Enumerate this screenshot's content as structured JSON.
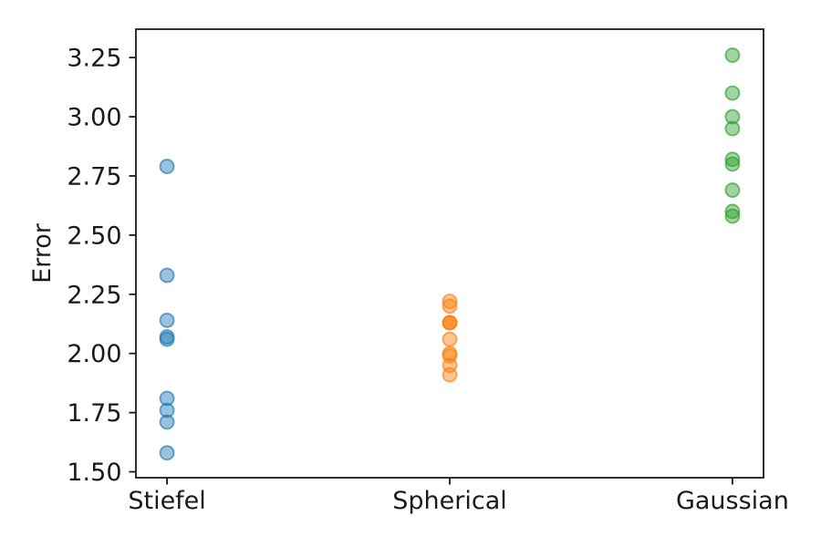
{
  "figure": {
    "background": "#ffffff",
    "ink_color": "#1a1a1a"
  },
  "chart_data": {
    "type": "scatter",
    "title": "",
    "xlabel": "",
    "ylabel": "Error",
    "categories": [
      "Stiefel",
      "Spherical",
      "Gaussian"
    ],
    "yticks": [
      "1.50",
      "1.75",
      "2.00",
      "2.25",
      "2.50",
      "2.75",
      "3.00",
      "3.25"
    ],
    "ylim": [
      1.475,
      3.37
    ],
    "xlim": [
      -0.11,
      2.11
    ],
    "grid": false,
    "legend": "none",
    "marker": {
      "radius": 7.5,
      "fill_alpha": 0.45,
      "edge_alpha": 0.68,
      "edge_width": 1.8
    },
    "series": [
      {
        "name": "Stiefel",
        "color": "#1f77b4",
        "x": 0,
        "values": [
          2.79,
          2.33,
          2.14,
          2.07,
          2.06,
          1.81,
          1.76,
          1.71,
          1.58
        ]
      },
      {
        "name": "Spherical",
        "color": "#ff7f0e",
        "x": 1,
        "values": [
          2.22,
          2.2,
          2.13,
          2.13,
          2.13,
          2.06,
          2.0,
          1.99,
          1.95,
          1.91
        ]
      },
      {
        "name": "Gaussian",
        "color": "#2ca02c",
        "x": 2,
        "values": [
          3.26,
          3.1,
          3.0,
          2.95,
          2.82,
          2.8,
          2.69,
          2.6,
          2.58
        ]
      }
    ]
  }
}
